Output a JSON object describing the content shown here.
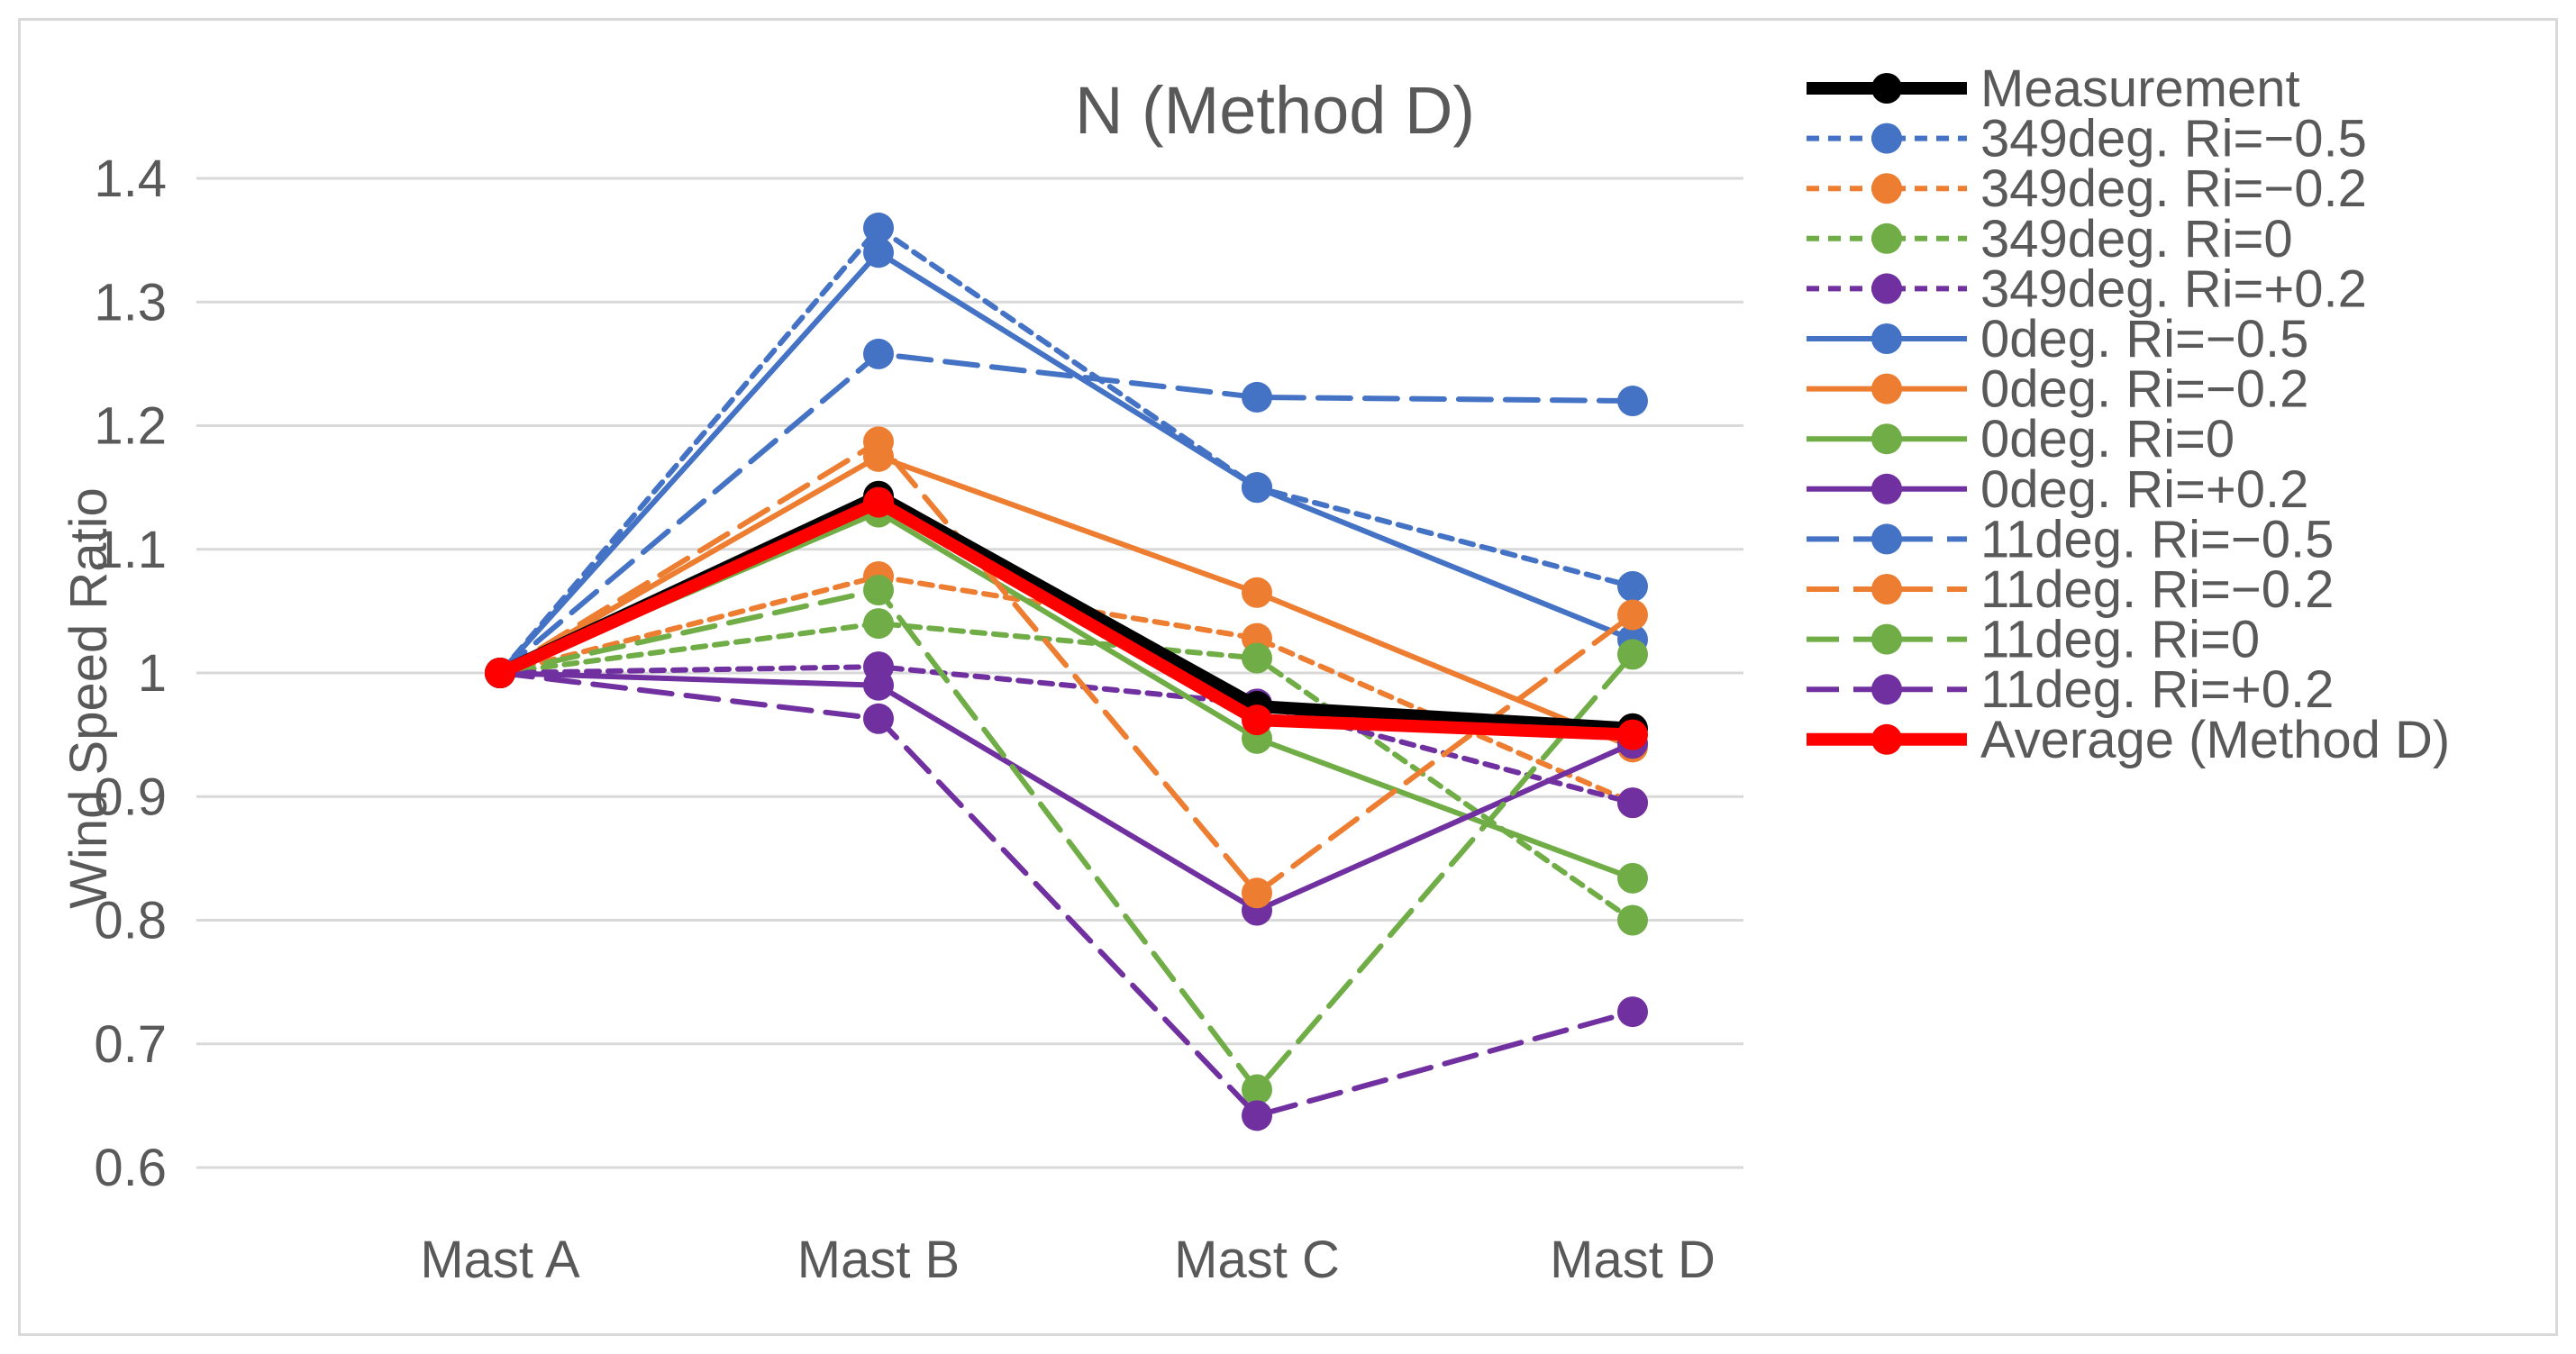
{
  "chart_data": {
    "type": "line",
    "title": "N (Method D)",
    "xlabel": "",
    "ylabel": "Wind Speed Ratio",
    "ylim": [
      0.6,
      1.4
    ],
    "yticks": [
      "1.4",
      "1.3",
      "1.2",
      "1.1",
      "1",
      "0.9",
      "0.8",
      "0.7",
      "0.6"
    ],
    "ytick_values": [
      1.4,
      1.3,
      1.2,
      1.1,
      1.0,
      0.9,
      0.8,
      0.7,
      0.6
    ],
    "grid": true,
    "legend_position": "right",
    "categories": [
      "Mast A",
      "Mast B",
      "Mast C",
      "Mast D"
    ],
    "series": [
      {
        "name": "Measurement",
        "values": [
          1.0,
          1.143,
          0.973,
          0.955
        ],
        "color": "#000000",
        "dash": "solid",
        "bold": true
      },
      {
        "name": "349deg. Ri=−0.5",
        "values": [
          1.0,
          1.36,
          1.15,
          1.07
        ],
        "color": "#4472c4",
        "dash": "short"
      },
      {
        "name": "349deg. Ri=−0.2",
        "values": [
          1.0,
          1.078,
          1.028,
          0.895
        ],
        "color": "#ed7d31",
        "dash": "short"
      },
      {
        "name": "349deg. Ri=0",
        "values": [
          1.0,
          1.04,
          1.012,
          0.8
        ],
        "color": "#70ad47",
        "dash": "short"
      },
      {
        "name": "349deg. Ri=+0.2",
        "values": [
          1.0,
          1.005,
          0.975,
          0.895
        ],
        "color": "#7030a0",
        "dash": "short"
      },
      {
        "name": "0deg. Ri=−0.5",
        "values": [
          1.0,
          1.34,
          1.15,
          1.027
        ],
        "color": "#4472c4",
        "dash": "solid"
      },
      {
        "name": "0deg. Ri=−0.2",
        "values": [
          1.0,
          1.175,
          1.065,
          0.94
        ],
        "color": "#ed7d31",
        "dash": "solid"
      },
      {
        "name": "0deg. Ri=0",
        "values": [
          1.0,
          1.13,
          0.947,
          0.834
        ],
        "color": "#70ad47",
        "dash": "solid"
      },
      {
        "name": "0deg. Ri=+0.2",
        "values": [
          1.0,
          0.99,
          0.808,
          0.943
        ],
        "color": "#7030a0",
        "dash": "solid"
      },
      {
        "name": "11deg. Ri=−0.5",
        "values": [
          1.0,
          1.258,
          1.223,
          1.22
        ],
        "color": "#4472c4",
        "dash": "long"
      },
      {
        "name": "11deg. Ri=−0.2",
        "values": [
          1.0,
          1.187,
          0.822,
          1.047
        ],
        "color": "#ed7d31",
        "dash": "long"
      },
      {
        "name": "11deg. Ri=0",
        "values": [
          1.0,
          1.067,
          0.663,
          1.015
        ],
        "color": "#70ad47",
        "dash": "long"
      },
      {
        "name": "11deg. Ri=+0.2",
        "values": [
          1.0,
          0.963,
          0.642,
          0.726
        ],
        "color": "#7030a0",
        "dash": "long"
      },
      {
        "name": "Average (Method D)",
        "values": [
          1.0,
          1.138,
          0.962,
          0.95
        ],
        "color": "#ff0000",
        "dash": "solid",
        "bold": true
      }
    ]
  }
}
